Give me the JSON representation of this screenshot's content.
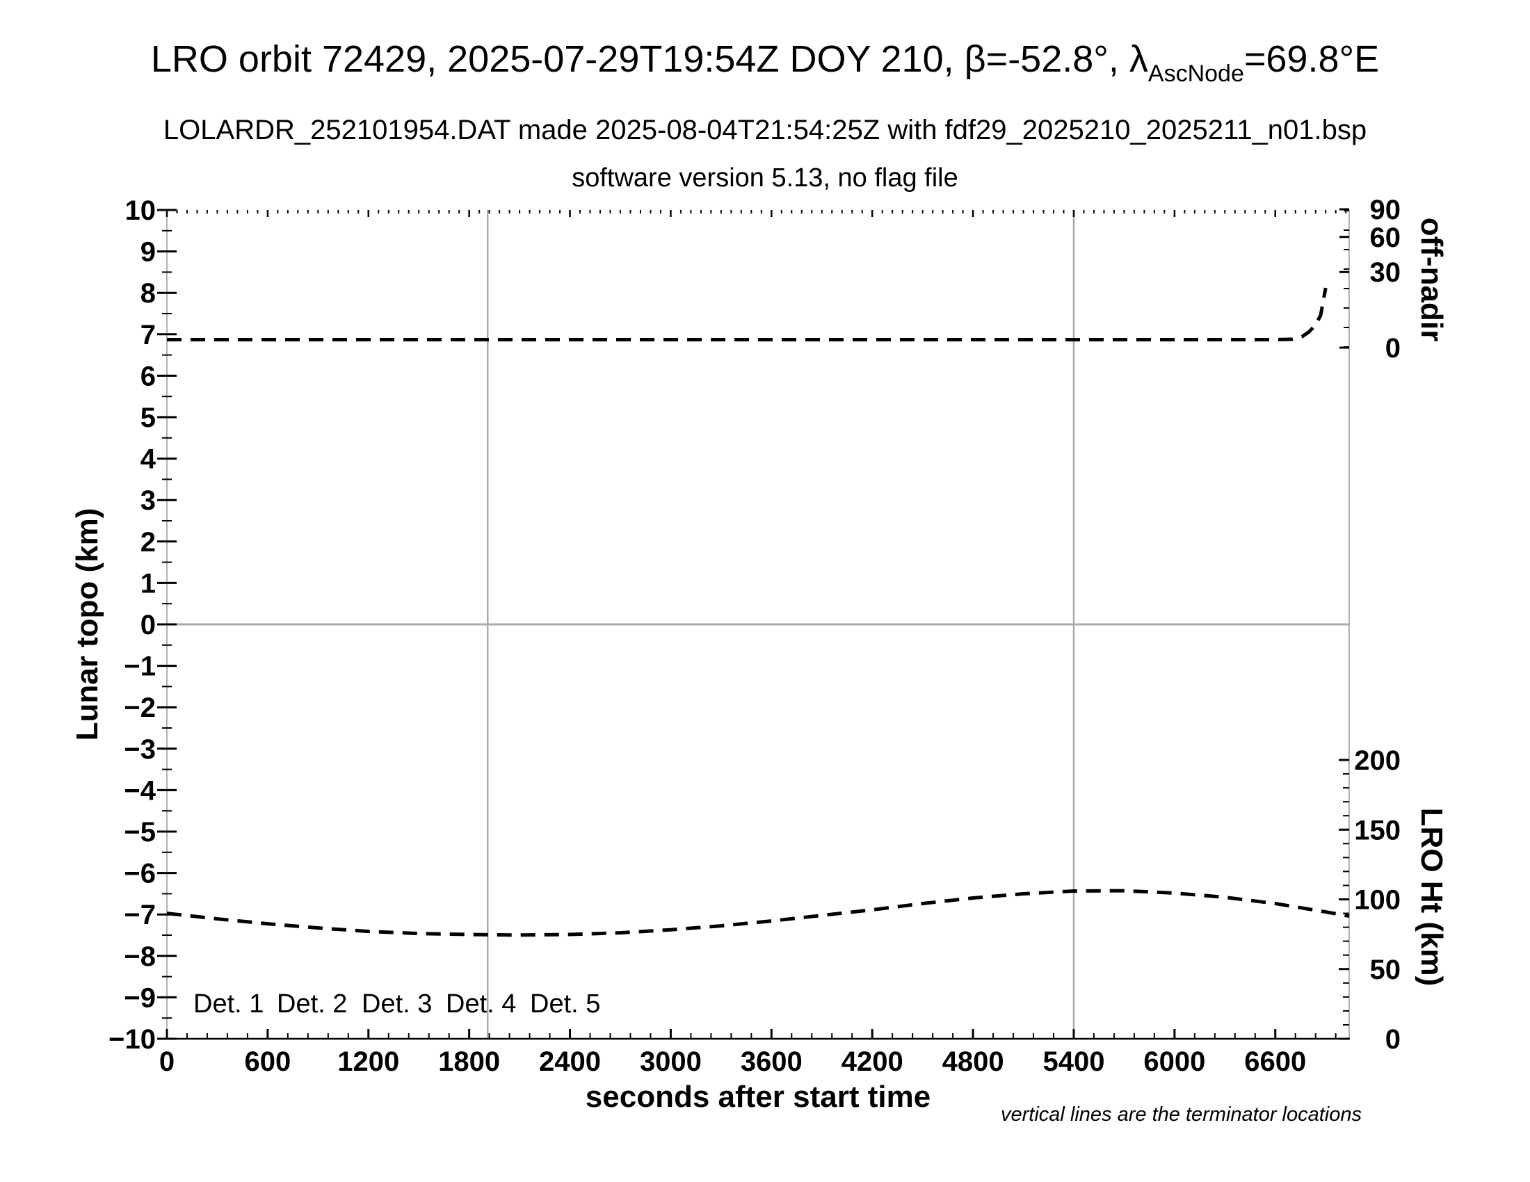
{
  "chart_data": {
    "type": "line",
    "title_parts": {
      "main": "LRO orbit 72429, 2025-07-29T19:54Z DOY 210, β=-52.8°, λ",
      "subscript": "AscNode",
      "tail": "=69.8°E"
    },
    "subtitle": "LOLARDR_252101954.DAT made 2025-08-04T21:54:25Z with fdf29_2025210_2025211_n01.bsp",
    "version_line": "software version 5.13, no flag file",
    "xlabel": "seconds after start time",
    "ylabel_left": "Lunar topo (km)",
    "ylabel_right_top": "off-nadir",
    "ylabel_right_bottom": "LRO Ht (km)",
    "footnote": "vertical lines are the terminator locations",
    "grid": "zero-line and terminator verticals only",
    "axes": {
      "x": {
        "min": 0,
        "max": 7040,
        "major_ticks": [
          0,
          600,
          1200,
          1800,
          2400,
          3000,
          3600,
          4200,
          4800,
          5400,
          6000,
          6600
        ],
        "minor_step": 120,
        "top_minor_step": 60
      },
      "y_left": {
        "min": -10,
        "max": 10,
        "minor_step": 0.5,
        "tick_values": [
          -10,
          -9,
          -8,
          -7,
          -6,
          -5,
          -4,
          -3,
          -2,
          -1,
          0,
          1,
          2,
          3,
          4,
          5,
          6,
          7,
          8,
          9,
          10
        ]
      },
      "y_right_top": {
        "unit": "degrees",
        "label_ticks": [
          90,
          60,
          30,
          0
        ],
        "scale": "nonlinear, compressed toward 90"
      },
      "y_right_bottom": {
        "unit": "km",
        "min": 0,
        "max": 200,
        "label_ticks": [
          200,
          150,
          100,
          50,
          0
        ],
        "minor_step": 10
      }
    },
    "terminator_seconds": [
      1910,
      5400
    ],
    "series": [
      {
        "name": "spacecraft off-nadir angle",
        "axis": "y_right_top",
        "units": "deg",
        "line_style": "dashed",
        "color": "#000000",
        "points": [
          [
            0,
            3.3
          ],
          [
            1000,
            3.3
          ],
          [
            2000,
            3.3
          ],
          [
            3000,
            3.3
          ],
          [
            4000,
            3.3
          ],
          [
            5000,
            3.3
          ],
          [
            6000,
            3.3
          ],
          [
            6600,
            3.3
          ],
          [
            6700,
            3.5
          ],
          [
            6760,
            4.6
          ],
          [
            6800,
            6.5
          ],
          [
            6840,
            9.5
          ],
          [
            6870,
            13.5
          ],
          [
            6900,
            25.6
          ]
        ]
      },
      {
        "name": "LRO height above surface",
        "axis": "y_right_bottom",
        "units": "km",
        "line_style": "dashed",
        "color": "#000000",
        "points": [
          [
            0,
            90
          ],
          [
            300,
            86
          ],
          [
            600,
            82.5
          ],
          [
            900,
            79.5
          ],
          [
            1200,
            77
          ],
          [
            1500,
            75.5
          ],
          [
            1800,
            74.8
          ],
          [
            2100,
            74.4
          ],
          [
            2400,
            74.8
          ],
          [
            2700,
            76
          ],
          [
            3000,
            78.2
          ],
          [
            3300,
            81
          ],
          [
            3600,
            84.5
          ],
          [
            3900,
            88.5
          ],
          [
            4200,
            92.5
          ],
          [
            4500,
            97
          ],
          [
            4800,
            101
          ],
          [
            5100,
            104
          ],
          [
            5400,
            106
          ],
          [
            5700,
            106.2
          ],
          [
            6000,
            104.5
          ],
          [
            6300,
            101.5
          ],
          [
            6600,
            97
          ],
          [
            6900,
            91
          ],
          [
            7040,
            88
          ]
        ]
      }
    ],
    "legend": [
      {
        "label": "Det. 1",
        "color": "#000000"
      },
      {
        "label": "Det. 2",
        "color": "#0000ff"
      },
      {
        "label": "Det. 3",
        "color": "#00dd00"
      },
      {
        "label": "Det. 4",
        "color": "#ffa500"
      },
      {
        "label": "Det. 5",
        "color": "#ff0000"
      }
    ],
    "style_colors": {
      "curve": "#000000",
      "terminator_line": "#aaaaaa",
      "zero_line": "#aaaaaa",
      "frame_side": "#999999",
      "frame_bottom": "#000000"
    }
  }
}
